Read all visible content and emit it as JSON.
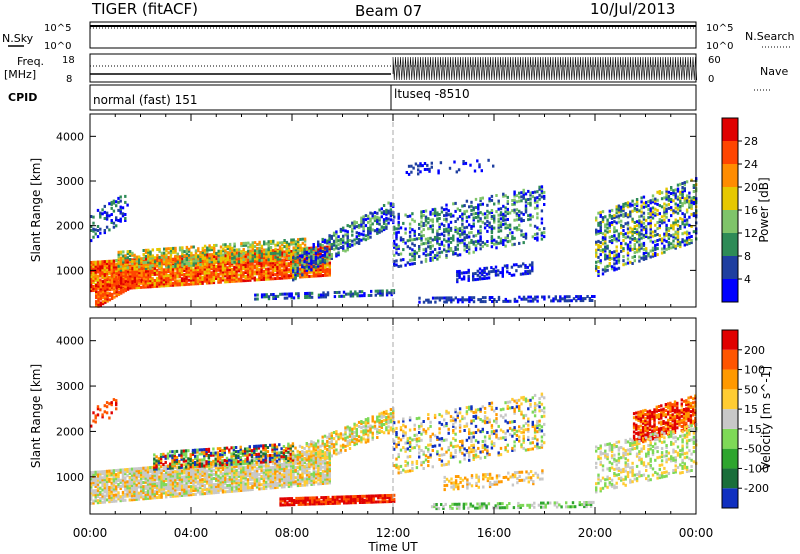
{
  "header": {
    "station": "TIGER (fitACF)",
    "beam": "Beam 07",
    "date": "10/Jul/2013"
  },
  "strip_labels": {
    "nsky": "N.Sky",
    "nsearch": "N.Search",
    "freq": "Freq.",
    "freq_unit": "[MHz]",
    "nave": "Nave",
    "cpid": "CPID",
    "cpid_1": "normal (fast) 151",
    "cpid_2": "ltuseq -8510",
    "noise_top_left": "10^5",
    "noise_bot_left": "10^0",
    "noise_top_right": "10^5",
    "noise_bot_right": "10^0",
    "freq_top": "18",
    "freq_bot": "8",
    "nave_top": "60",
    "nave_bot": "0"
  },
  "chart_data": {
    "type": "heatmap",
    "time_axis": {
      "label": "Time UT",
      "ticks": [
        "00:00",
        "04:00",
        "08:00",
        "12:00",
        "16:00",
        "20:00",
        "00:00"
      ],
      "range_hours": [
        0,
        24
      ]
    },
    "range_axis": {
      "label": "Slant Range [km]",
      "ticks": [
        "1000",
        "2000",
        "3000",
        "4000"
      ],
      "range_km": [
        180,
        4500
      ]
    },
    "cpid_change_hour": 12,
    "panels": [
      {
        "name": "power",
        "colorbar_label": "Power [dB]",
        "colorbar_ticks": [
          "4",
          "8",
          "12",
          "16",
          "20",
          "24",
          "28"
        ],
        "colors": [
          "#0000ff",
          "#1f3fa0",
          "#2e8b57",
          "#7fc46a",
          "#e6c800",
          "#ff8c00",
          "#ff4500",
          "#e00000"
        ]
      },
      {
        "name": "velocity",
        "colorbar_label": "Velocity [m s^-1]",
        "colorbar_ticks": [
          "200",
          "100",
          "50",
          "15",
          "-15",
          "-50",
          "-100",
          "-200"
        ],
        "colors": [
          "#1030c0",
          "#1a6e3a",
          "#2ea52e",
          "#7ed957",
          "#c8c8c8",
          "#ffcc33",
          "#ff9900",
          "#ff5500",
          "#e00000"
        ]
      }
    ]
  }
}
